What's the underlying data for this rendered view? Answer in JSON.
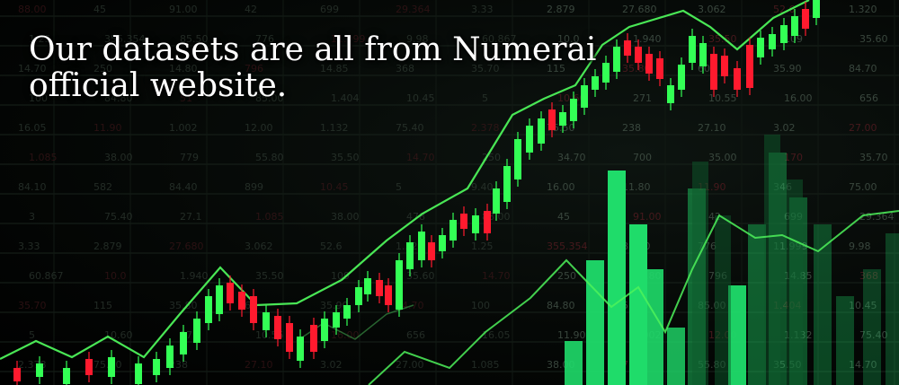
{
  "caption": {
    "line1": "Our datasets are all from Numerai",
    "line2": "official website."
  },
  "ticker_labels": [
    "88.00",
    "45",
    "91.00",
    "42",
    "699",
    "29.364",
    "3.33",
    "2.879",
    "27.680",
    "3.062",
    "52.6",
    "1.320",
    "1.25",
    "355.354",
    "85.50",
    "776",
    "11.999",
    "9.98",
    "60.867",
    "10.0",
    "1.940",
    "35.50",
    "109",
    "35.60",
    "14.70",
    "250",
    "14.80",
    "796",
    "14.85",
    "368",
    "35.70",
    "115",
    "35.80",
    "60",
    "35.90",
    "84.70",
    "100",
    "84.80",
    "51",
    "85.00",
    "1.404",
    "10.45",
    "5",
    "10.60",
    "271",
    "10.55",
    "16.00",
    "656",
    "16.05",
    "11.90",
    "1.002",
    "12.00",
    "1.132",
    "75.40",
    "2.378",
    "75.50",
    "238",
    "27.10",
    "3.02",
    "27.00",
    "1.085",
    "38.00",
    "779",
    "55.80",
    "35.50",
    "14.70",
    "250",
    "34.70",
    "700",
    "35.00",
    "170",
    "35.70",
    "84.10",
    "582",
    "84.40",
    "899",
    "10.45",
    "5",
    "9.40",
    "16.00",
    "11.80",
    "11.90",
    "346",
    "75.00",
    "3",
    "75.40",
    "27.1",
    "1.085",
    "38.00",
    "478"
  ],
  "colors": {
    "background": "#000000",
    "caption_text": "#ffffff",
    "candle_up": "#33ff55",
    "candle_down": "#ff1a2e",
    "trend_line": "#4df25a",
    "volume_bar": "#1fdc6a",
    "ticker_text": "#3c4a40"
  },
  "icons": [
    "candlestick-chart",
    "volume-bars",
    "trend-line"
  ]
}
